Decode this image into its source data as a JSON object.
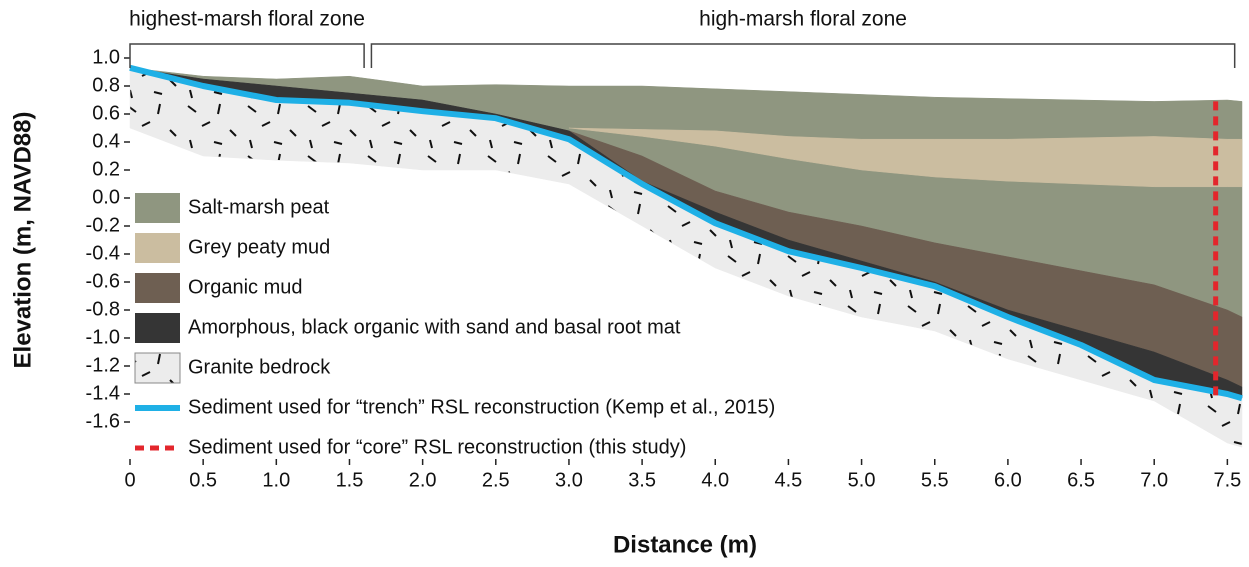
{
  "chart_data": {
    "type": "area",
    "x_label": "Distance (m)",
    "y_label": "Elevation (m, NAVD88)",
    "xlim": [
      0,
      7.6
    ],
    "ylim": [
      -1.85,
      1.0
    ],
    "xticks": [
      0,
      0.5,
      {
        "value": 1,
        "label": "1.0"
      },
      1.5,
      {
        "value": 2,
        "label": "2.0"
      },
      2.5,
      {
        "value": 3,
        "label": "3.0"
      },
      3.5,
      {
        "value": 4,
        "label": "4.0"
      },
      4.5,
      {
        "value": 5,
        "label": "5.0"
      },
      5.5,
      {
        "value": 6,
        "label": "6.0"
      },
      6.5,
      {
        "value": 7,
        "label": "7.0"
      },
      7.5
    ],
    "yticks": [
      {
        "value": 1,
        "label": "1.0"
      },
      0.8,
      0.6,
      0.4,
      0.2,
      {
        "value": 0,
        "label": "0.0"
      },
      -0.2,
      -0.4,
      -0.6,
      -0.8,
      {
        "value": -1,
        "label": "-1.0"
      },
      -1.2,
      -1.4,
      -1.6
    ],
    "zones": [
      {
        "label": "highest-marsh floral zone",
        "start": 0,
        "end": 1.6
      },
      {
        "label": "high-marsh floral zone",
        "start": 1.65,
        "end": 7.55
      }
    ],
    "x": [
      0,
      0.5,
      1,
      1.5,
      2,
      2.5,
      3,
      3.5,
      4,
      4.5,
      5,
      5.5,
      6,
      6.5,
      7,
      7.5,
      7.6
    ],
    "series": [
      {
        "name": "Salt-marsh peat",
        "color": "#8f9680",
        "upper": [
          0.93,
          0.87,
          0.85,
          0.87,
          0.8,
          0.81,
          0.8,
          0.8,
          0.78,
          0.76,
          0.74,
          0.72,
          0.71,
          0.7,
          0.69,
          0.7,
          0.69
        ],
        "lower": [
          0.93,
          0.85,
          0.8,
          0.75,
          0.7,
          0.6,
          0.48,
          0.3,
          0.05,
          -0.1,
          -0.2,
          -0.32,
          -0.42,
          -0.52,
          -0.62,
          -0.8,
          -0.85
        ]
      },
      {
        "name": "Grey peaty mud",
        "color": "#cbbda0",
        "upper": [
          null,
          null,
          null,
          null,
          null,
          null,
          0.5,
          0.49,
          0.48,
          0.44,
          0.42,
          0.42,
          0.42,
          0.43,
          0.44,
          0.42,
          0.42
        ],
        "lower": [
          null,
          null,
          null,
          null,
          null,
          null,
          0.5,
          0.44,
          0.37,
          0.28,
          0.2,
          0.15,
          0.12,
          0.1,
          0.08,
          0.08,
          0.08
        ]
      },
      {
        "name": "Organic mud",
        "color": "#6e5f52",
        "upper": [
          null,
          null,
          null,
          null,
          null,
          null,
          0.48,
          0.3,
          0.05,
          -0.1,
          -0.2,
          -0.32,
          -0.42,
          -0.52,
          -0.62,
          -0.8,
          -0.85
        ],
        "lower": [
          null,
          null,
          null,
          null,
          null,
          null,
          0.48,
          0.12,
          -0.1,
          -0.3,
          -0.45,
          -0.6,
          -0.8,
          -0.95,
          -1.1,
          -1.3,
          -1.35
        ]
      },
      {
        "name": "Amorphous, black organic with sand and basal root mat",
        "color": "#353535",
        "upper": [
          0.93,
          0.85,
          0.8,
          0.75,
          0.7,
          0.6,
          0.48,
          0.12,
          -0.1,
          -0.3,
          -0.45,
          -0.6,
          -0.8,
          -0.95,
          -1.1,
          -1.3,
          -1.35
        ],
        "lower": [
          0.93,
          0.8,
          0.7,
          0.68,
          0.62,
          0.57,
          0.42,
          0.1,
          -0.18,
          -0.38,
          -0.5,
          -0.63,
          -0.85,
          -1.05,
          -1.3,
          -1.4,
          -1.43
        ]
      },
      {
        "name": "Granite bedrock",
        "color": "#ececec",
        "upper": [
          0.93,
          0.8,
          0.7,
          0.68,
          0.62,
          0.57,
          0.42,
          0.1,
          -0.18,
          -0.38,
          -0.5,
          -0.63,
          -0.85,
          -1.05,
          -1.3,
          -1.4,
          -1.43
        ],
        "lower": [
          0.5,
          0.3,
          0.27,
          0.25,
          0.2,
          0.2,
          0.1,
          -0.2,
          -0.5,
          -0.7,
          -0.85,
          -0.95,
          -1.15,
          -1.3,
          -1.45,
          -1.75,
          -1.78
        ]
      },
      {
        "name": "Sediment used for “trench” RSL reconstruction (Kemp et al., 2015)",
        "color": "#1fb0e6",
        "values": [
          0.93,
          0.8,
          0.7,
          0.68,
          0.62,
          0.57,
          0.42,
          0.1,
          -0.18,
          -0.38,
          -0.5,
          -0.63,
          -0.85,
          -1.05,
          -1.3,
          -1.4,
          -1.43
        ]
      },
      {
        "name": "Sediment used for “core” RSL reconstruction (this study)",
        "color": "#e3262c",
        "dashed": true,
        "x": [
          7.42,
          7.42
        ],
        "values": [
          0.69,
          -1.42
        ]
      }
    ]
  }
}
